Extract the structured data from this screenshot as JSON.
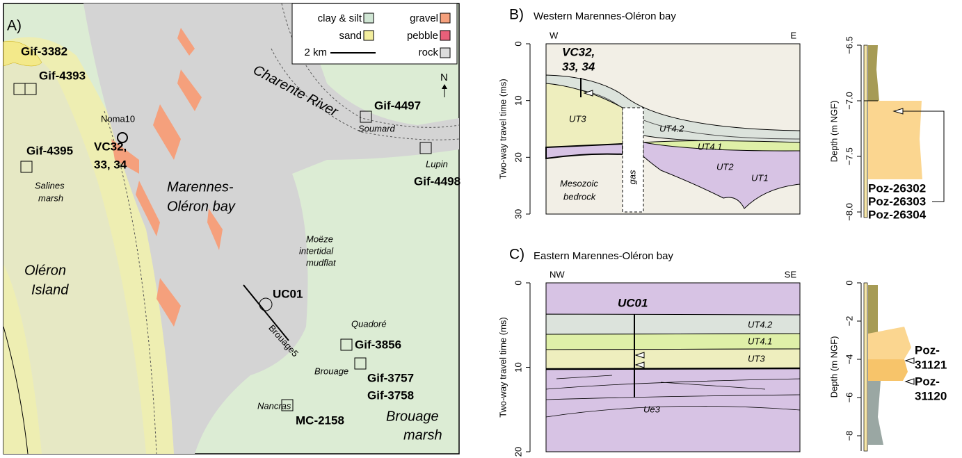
{
  "panel_a": {
    "label": "A)",
    "legend": {
      "clay_silt": "clay & silt",
      "sand": "sand",
      "gravel": "gravel",
      "pebble": "pebble",
      "scale": "2 km",
      "rock": "rock"
    },
    "north": "N",
    "places": [
      "Gif-3382",
      "Gif-4393",
      "Gif-4395",
      "Noma10",
      "VC32,",
      "33, 34",
      "Salines",
      "marsh",
      "Marennes-",
      "Oléron bay",
      "Charente River",
      "Gif-4497",
      "Soumard",
      "Lupin",
      "Gif-4498",
      "Moëze",
      "intertidal",
      "mudflat",
      "Oléron",
      "Island",
      "UC01",
      "Brouage5",
      "Quadoré",
      "Gif-3856",
      "Brouage",
      "Gif-3757",
      "Gif-3758",
      "Nancras",
      "MC-2158",
      "Brouage",
      "marsh"
    ]
  },
  "panel_b": {
    "label": "B)",
    "title": "Western Marennes-Oléron bay",
    "left": "W",
    "right": "E",
    "y_label": "Two-way travel time (ms)",
    "ylim": [
      0,
      30
    ],
    "yticks": [
      0,
      10,
      20,
      30
    ],
    "core_name": [
      "VC32,",
      "33, 34"
    ],
    "units": [
      "UT3",
      "UT4.2",
      "UT4.1",
      "UT2",
      "UT1",
      "gas",
      "Mesozoic",
      "bedrock"
    ],
    "core": {
      "y_label": "Depth (m NGF)",
      "ylim": [
        -6.5,
        -8.05
      ],
      "yticks": [
        {
          "value": -6.5,
          "label": "−6.5"
        },
        {
          "value": -7.0,
          "label": "−7.0"
        },
        {
          "value": -7.5,
          "label": "−7.5"
        },
        {
          "value": -8.0,
          "label": "−8.0"
        }
      ],
      "samples": [
        "Poz-26302",
        "Poz-26303",
        "Poz-26304"
      ]
    }
  },
  "panel_c": {
    "label": "C)",
    "title": "Eastern Marennes-Oléron bay",
    "left": "NW",
    "right": "SE",
    "y_label": "Two-way travel time (ms)",
    "ylim": [
      0,
      20
    ],
    "yticks": [
      0,
      10,
      20
    ],
    "core_name": "UC01",
    "units": [
      "UT4.2",
      "UT4.1",
      "UT3",
      "Ue3"
    ],
    "core": {
      "y_label": "Depth (m NGF)",
      "ylim": [
        0,
        -8.8
      ],
      "yticks": [
        0,
        {
          "value": -2,
          "label": "−2"
        },
        {
          "value": -4,
          "label": "−4"
        },
        {
          "value": -6,
          "label": "−6"
        },
        {
          "value": -8,
          "label": "−8"
        }
      ],
      "samples": [
        "Poz-",
        "31121",
        "Poz-",
        "31120"
      ]
    }
  }
}
